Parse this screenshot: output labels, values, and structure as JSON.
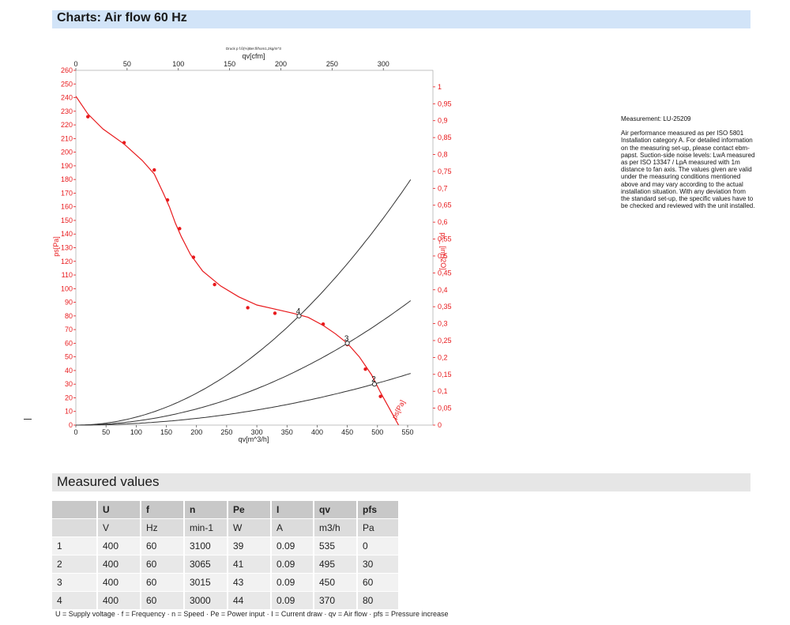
{
  "header": {
    "title": "Charts: Air flow 60 Hz"
  },
  "chart_data": {
    "type": "line",
    "top_caption": "Druck p f.ß(%)Ber.fl/hom1,2kg/m^3",
    "x_bottom": {
      "label": "qv[m^3/h]",
      "ticks": [
        0,
        50,
        100,
        150,
        200,
        250,
        300,
        350,
        400,
        450,
        500,
        550
      ]
    },
    "x_top": {
      "label": "qv[cfm]",
      "ticks": [
        0,
        50,
        100,
        150,
        200,
        250,
        300
      ]
    },
    "y_left": {
      "label": "ps[Pa]",
      "range": [
        0,
        260
      ],
      "ticks": [
        0,
        10,
        20,
        30,
        40,
        50,
        60,
        70,
        80,
        90,
        100,
        110,
        120,
        130,
        140,
        150,
        160,
        170,
        180,
        190,
        200,
        210,
        220,
        230,
        240,
        250,
        260
      ]
    },
    "y_right": {
      "label": "ps_ [inH2O]",
      "range": [
        0,
        1.05
      ],
      "ticks": [
        "0",
        "0,05",
        "0,1",
        "0,15",
        "0,2",
        "0,25",
        "0,3",
        "0,35",
        "0,4",
        "0,45",
        "0,5",
        "0,55",
        "0,6",
        "0,65",
        "0,7",
        "0,75",
        "0,8",
        "0,85",
        "0,9",
        "0,95",
        "1"
      ]
    },
    "curve_label": "ps[Pa]",
    "pressure_curve": [
      [
        0,
        241
      ],
      [
        20,
        228
      ],
      [
        45,
        217
      ],
      [
        80,
        206
      ],
      [
        110,
        194
      ],
      [
        130,
        184
      ],
      [
        145,
        170
      ],
      [
        155,
        160
      ],
      [
        165,
        148
      ],
      [
        175,
        138
      ],
      [
        190,
        125
      ],
      [
        210,
        113
      ],
      [
        240,
        102
      ],
      [
        270,
        94
      ],
      [
        300,
        88
      ],
      [
        330,
        85
      ],
      [
        360,
        82
      ],
      [
        385,
        79
      ],
      [
        410,
        73
      ],
      [
        430,
        67
      ],
      [
        450,
        60
      ],
      [
        470,
        50
      ],
      [
        490,
        37
      ],
      [
        505,
        24
      ],
      [
        520,
        12
      ],
      [
        535,
        0
      ]
    ],
    "measured_points": [
      [
        20,
        226
      ],
      [
        80,
        207
      ],
      [
        130,
        187
      ],
      [
        152,
        165
      ],
      [
        172,
        144
      ],
      [
        195,
        123
      ],
      [
        230,
        103
      ],
      [
        285,
        86
      ],
      [
        330,
        82
      ],
      [
        370,
        80
      ],
      [
        410,
        74
      ],
      [
        450,
        59
      ],
      [
        480,
        41
      ],
      [
        505,
        21
      ]
    ],
    "system_curves": [
      {
        "label": "4",
        "k": 0.000584,
        "x_end": 555
      },
      {
        "label": "3",
        "k": 0.000296,
        "x_end": 555
      },
      {
        "label": "2",
        "k": 0.000123,
        "x_end": 555
      }
    ],
    "operating_points": [
      {
        "label": "4",
        "x": 370,
        "y": 80
      },
      {
        "label": "3",
        "x": 450,
        "y": 60
      },
      {
        "label": "2",
        "x": 495,
        "y": 30
      }
    ]
  },
  "info": {
    "measurement": "Measurement: LU-25209",
    "description": "Air performance measured as per ISO 5801 Installation category A. For detailed information on the measuring set-up, please contact ebm-papst. Suction-side noise levels: LwA measured as per ISO 13347 / LpA measured with 1m distance to fan axis. The values given are valid under the measuring conditions mentioned above and may vary according to the actual installation situation. With any deviation from the standard set-up, the specific values have to be checked and reviewed with the unit installed."
  },
  "measured": {
    "title": "Measured values",
    "headers": [
      "",
      "U",
      "f",
      "n",
      "Pe",
      "I",
      "qv",
      "pfs"
    ],
    "units": [
      "",
      "V",
      "Hz",
      "min-1",
      "W",
      "A",
      "m3/h",
      "Pa"
    ],
    "rows": [
      [
        "1",
        "400",
        "60",
        "3100",
        "39",
        "0.09",
        "535",
        "0"
      ],
      [
        "2",
        "400",
        "60",
        "3065",
        "41",
        "0.09",
        "495",
        "30"
      ],
      [
        "3",
        "400",
        "60",
        "3015",
        "43",
        "0.09",
        "450",
        "60"
      ],
      [
        "4",
        "400",
        "60",
        "3000",
        "44",
        "0.09",
        "370",
        "80"
      ]
    ],
    "footnote": "U = Supply voltage · f = Frequency · n = Speed · Pe = Power input · I = Current draw · qv = Air flow · pfs = Pressure increase"
  },
  "colors": {
    "curve": "#e8191c",
    "system": "#333333",
    "header_bg": "#d2e4f8"
  }
}
